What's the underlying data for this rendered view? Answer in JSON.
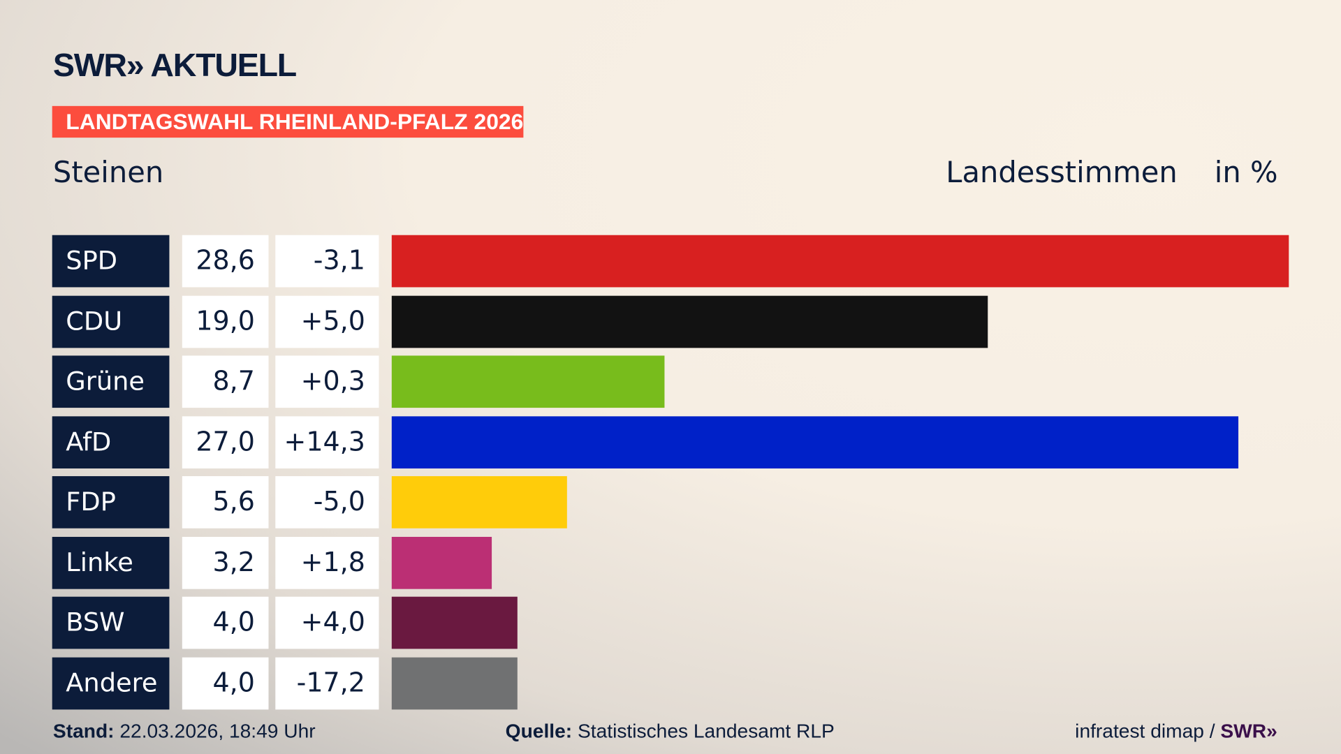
{
  "header": {
    "logo": "SWR» AKTUELL",
    "tag": "LANDTAGSWAHL RHEINLAND-PFALZ 2026",
    "location": "Steinen",
    "measure": "Landesstimmen",
    "unit": "in %"
  },
  "chart_data": {
    "type": "bar",
    "orientation": "horizontal",
    "xlim": [
      0,
      28.6
    ],
    "grid": false,
    "categories": [
      "SPD",
      "CDU",
      "Grüne",
      "AfD",
      "FDP",
      "Linke",
      "BSW",
      "Andere"
    ],
    "values": [
      28.6,
      19.0,
      8.7,
      27.0,
      5.6,
      3.2,
      4.0,
      4.0
    ],
    "value_labels": [
      "28,6",
      "19,0",
      "8,7",
      "27,0",
      "5,6",
      "3,2",
      "4,0",
      "4,0"
    ],
    "diff_labels": [
      "-3,1",
      "+5,0",
      "+0,3",
      "+14,3",
      "-5,0",
      "+1,8",
      "+4,0",
      "-17,2"
    ],
    "colors": [
      "#d82020",
      "#121212",
      "#78bc1c",
      "#0021c8",
      "#ffcc0a",
      "#bb2f74",
      "#6a1940",
      "#707172"
    ]
  },
  "footer": {
    "stand_label": "Stand:",
    "stand": "22.03.2026, 18:49 Uhr",
    "source_label": "Quelle:",
    "source": "Statistisches Landesamt RLP",
    "credit": "infratest dimap /",
    "credit_logo": "SWR»"
  }
}
